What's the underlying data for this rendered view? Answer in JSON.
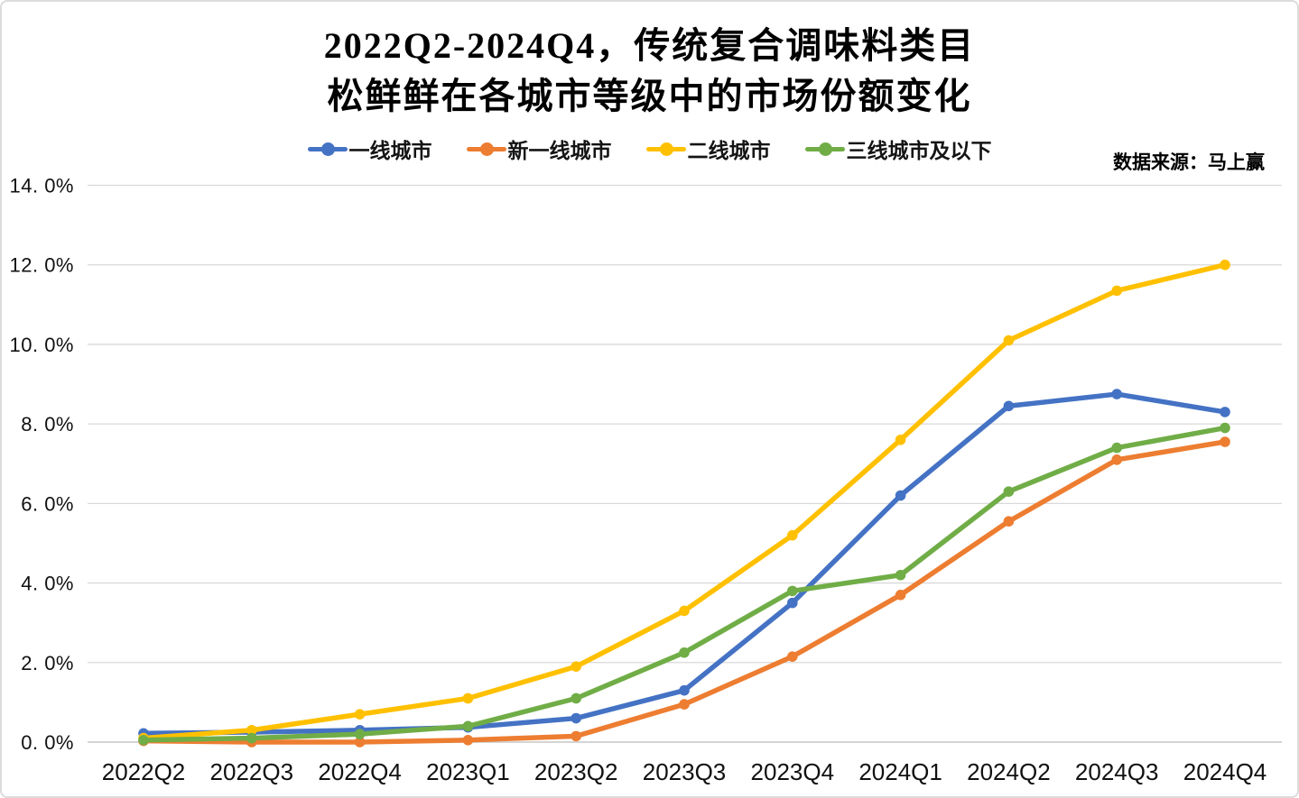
{
  "title": {
    "line1": "2022Q2-2024Q4，传统复合调味料类目",
    "line2": "松鲜鲜在各城市等级中的市场份额变化"
  },
  "source_note": "数据来源：马上赢",
  "colors": {
    "gridline": "#D9D9D9",
    "axis_line": "#C6C6C6",
    "axis_text": "#111111",
    "title_text": "#000000"
  },
  "chart_data": {
    "type": "line",
    "title": "2022Q2-2024Q4，传统复合调味料类目 松鲜鲜在各城市等级中的市场份额变化",
    "xlabel": "",
    "ylabel": "",
    "grid": true,
    "legend_position": "top",
    "marker": "circle",
    "ylim": [
      0,
      14
    ],
    "categories": [
      "2022Q2",
      "2022Q3",
      "2022Q4",
      "2023Q1",
      "2023Q2",
      "2023Q3",
      "2023Q4",
      "2024Q1",
      "2024Q2",
      "2024Q3",
      "2024Q4"
    ],
    "yticks": [
      {
        "value": 0,
        "label": "0. 0%"
      },
      {
        "value": 2,
        "label": "2. 0%"
      },
      {
        "value": 4,
        "label": "4. 0%"
      },
      {
        "value": 6,
        "label": "6. 0%"
      },
      {
        "value": 8,
        "label": "8. 0%"
      },
      {
        "value": 10,
        "label": "10. 0%"
      },
      {
        "value": 12,
        "label": "12. 0%"
      },
      {
        "value": 14,
        "label": "14. 0%"
      }
    ],
    "series": [
      {
        "name": "一线城市",
        "color": "#4472C4",
        "values": [
          0.22,
          0.25,
          0.3,
          0.37,
          0.6,
          1.3,
          3.5,
          6.2,
          8.45,
          8.75,
          8.3
        ]
      },
      {
        "name": "新一线城市",
        "color": "#ED7D31",
        "values": [
          0.03,
          0.0,
          0.0,
          0.05,
          0.15,
          0.95,
          2.15,
          3.7,
          5.55,
          7.1,
          7.55
        ]
      },
      {
        "name": "二线城市",
        "color": "#FFC000",
        "values": [
          0.1,
          0.3,
          0.7,
          1.1,
          1.9,
          3.3,
          5.2,
          7.6,
          10.1,
          11.35,
          12.0
        ]
      },
      {
        "name": "三线城市及以下",
        "color": "#70AD47",
        "values": [
          0.05,
          0.1,
          0.2,
          0.4,
          1.1,
          2.25,
          3.8,
          4.2,
          6.3,
          7.4,
          7.9
        ]
      }
    ]
  }
}
